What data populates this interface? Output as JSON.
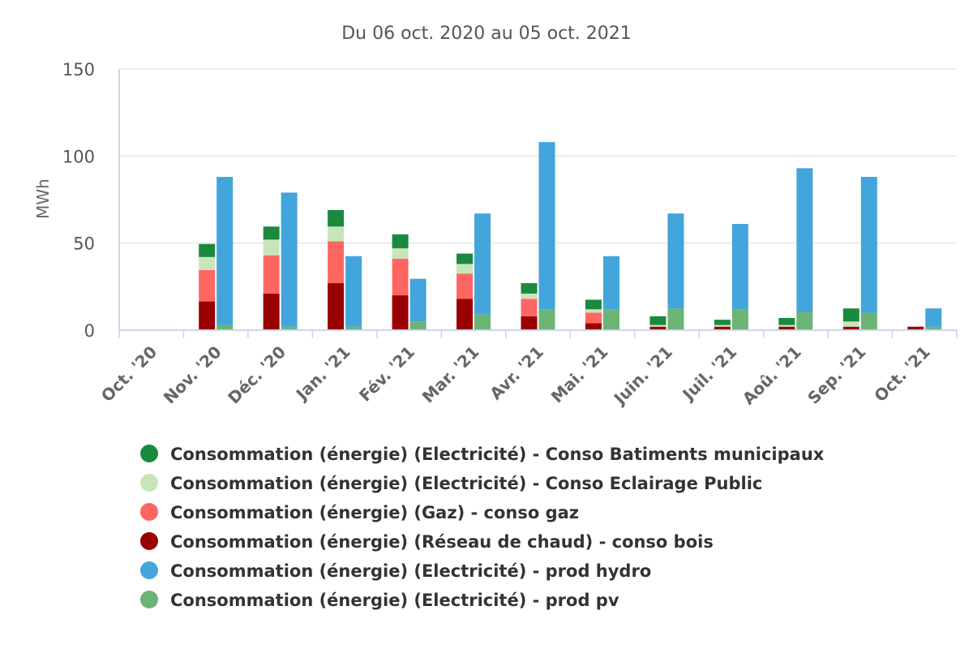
{
  "chart_data": {
    "type": "bar",
    "subtitle": "Du 06 oct. 2020 au 05 oct. 2021",
    "ylabel": "MWh",
    "ylim": [
      0,
      150
    ],
    "yticks": [
      0,
      50,
      100,
      150
    ],
    "categories": [
      "Oct. '20",
      "Nov. '20",
      "Déc. '20",
      "Jan. '21",
      "Fév. '21",
      "Mar. '21",
      "Avr. '21",
      "Mai. '21",
      "Juin. '21",
      "Juil. '21",
      "Aoû. '21",
      "Sep. '21",
      "Oct. '21"
    ],
    "stacks": [
      {
        "stack": "consommation",
        "series": [
          {
            "name": "Consommation (énergie) (Réseau de chaud) - conso bois",
            "color": "#990000",
            "values": [
              0,
              16.5,
              21,
              27,
              20,
              18,
              8,
              4,
              2,
              2,
              2,
              2,
              2
            ]
          },
          {
            "name": "Consommation (énergie) (Gaz) - conso gaz",
            "color": "#ff6661",
            "values": [
              0,
              18,
              22,
              24,
              21,
              14.5,
              10,
              6,
              0,
              0,
              0,
              0,
              0
            ]
          },
          {
            "name": "Consommation (énergie) (Electricité) - Conso Eclairage Public",
            "color": "#c7e5ba",
            "values": [
              0,
              7.5,
              9,
              8.5,
              6,
              5.5,
              3,
              2,
              1,
              1,
              1,
              3,
              0
            ]
          },
          {
            "name": "Consommation (énergie) (Electricité) - Conso Batiments municipaux",
            "color": "#1a8a3f",
            "values": [
              0,
              7.5,
              7.5,
              9.5,
              8,
              6,
              6,
              5.5,
              5,
              3,
              4,
              7.5,
              0
            ]
          }
        ]
      },
      {
        "stack": "production",
        "series": [
          {
            "name": "Consommation (énergie) (Electricité) - prod pv",
            "color": "#6cb376",
            "values": [
              0,
              3,
              2,
              2,
              5,
              9,
              12,
              12,
              12.5,
              12,
              10.5,
              10,
              2
            ]
          },
          {
            "name": "Consommation (énergie) (Electricité) - prod hydro",
            "color": "#42a5db",
            "values": [
              0,
              85,
              77,
              40.5,
              24.5,
              58,
              96,
              30.5,
              54.5,
              49,
              82.5,
              78,
              10.5
            ]
          }
        ]
      }
    ],
    "legend": [
      {
        "label": "Consommation (énergie) (Electricité) - Conso Batiments municipaux",
        "color": "#1a8a3f"
      },
      {
        "label": "Consommation (énergie) (Electricité) - Conso Eclairage Public",
        "color": "#c7e5ba"
      },
      {
        "label": "Consommation (énergie) (Gaz) - conso gaz",
        "color": "#ff6661"
      },
      {
        "label": "Consommation (énergie) (Réseau de chaud) - conso bois",
        "color": "#990000"
      },
      {
        "label": "Consommation (énergie) (Electricité) - prod hydro",
        "color": "#42a5db"
      },
      {
        "label": "Consommation (énergie) (Electricité) - prod pv",
        "color": "#6cb376"
      }
    ],
    "legend_position": "bottom",
    "grid": true
  }
}
